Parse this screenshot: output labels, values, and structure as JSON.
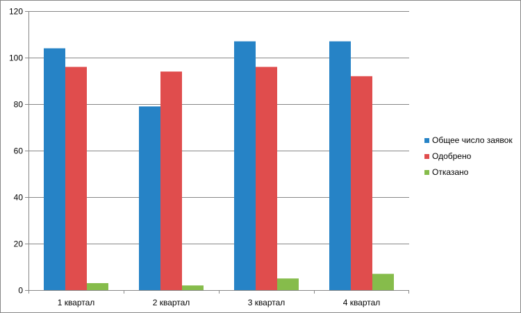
{
  "chart_data": {
    "type": "bar",
    "categories": [
      "1 квартал",
      "2 квартал",
      "3 квартал",
      "4 квартал"
    ],
    "series": [
      {
        "name": "Общее число заявок",
        "color": "#2683C6",
        "values": [
          104,
          79,
          107,
          107
        ]
      },
      {
        "name": "Одобрено",
        "color": "#E04D4D",
        "values": [
          96,
          94,
          96,
          92
        ]
      },
      {
        "name": "Отказано",
        "color": "#86BC4B",
        "values": [
          3,
          2,
          5,
          7
        ]
      }
    ],
    "ylim": [
      0,
      120
    ],
    "yticks": [
      0,
      20,
      40,
      60,
      80,
      100,
      120
    ],
    "grid": true,
    "legend": "right"
  }
}
